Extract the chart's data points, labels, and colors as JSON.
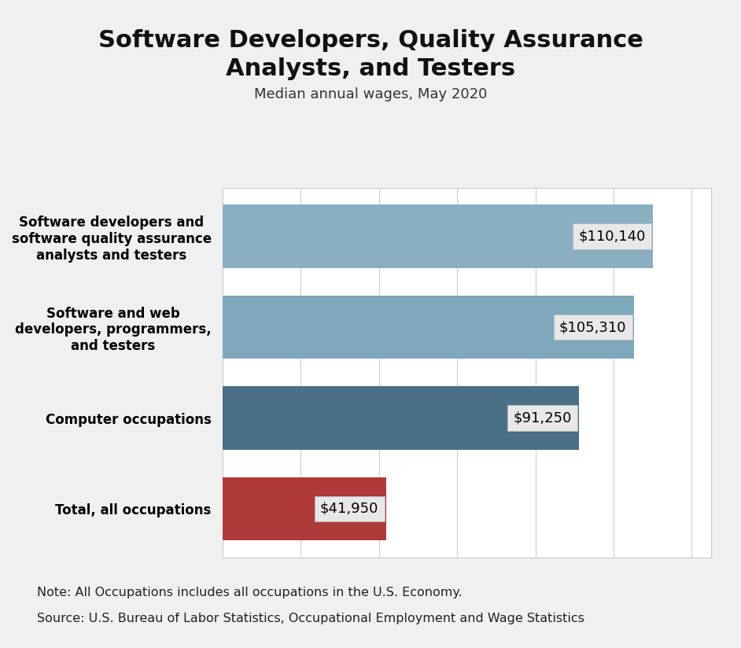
{
  "title": "Software Developers, Quality Assurance\nAnalysts, and Testers",
  "subtitle": "Median annual wages, May 2020",
  "categories": [
    "Total, all occupations",
    "Computer occupations",
    "Software and web\ndevelopers, programmers,\nand testers",
    "Software developers and\nsoftware quality assurance\nanalysts and testers"
  ],
  "values": [
    41950,
    91250,
    105310,
    110140
  ],
  "labels": [
    "$41,950",
    "$91,250",
    "$105,310",
    "$110,140"
  ],
  "bar_colors": [
    "#b03a3a",
    "#4a6f87",
    "#7fa8bc",
    "#8aafc0"
  ],
  "xlim": [
    0,
    125000
  ],
  "xticks": [
    0,
    20000,
    40000,
    60000,
    80000,
    100000,
    120000
  ],
  "note_line1": "Note: All Occupations includes all occupations in the U.S. Economy.",
  "note_line2": "Source: U.S. Bureau of Labor Statistics, Occupational Employment and Wage Statistics",
  "background_color": "#f0f0f0",
  "chart_bg_color": "#ffffff",
  "title_fontsize": 22,
  "subtitle_fontsize": 13,
  "label_fontsize": 13,
  "note_fontsize": 11.5
}
